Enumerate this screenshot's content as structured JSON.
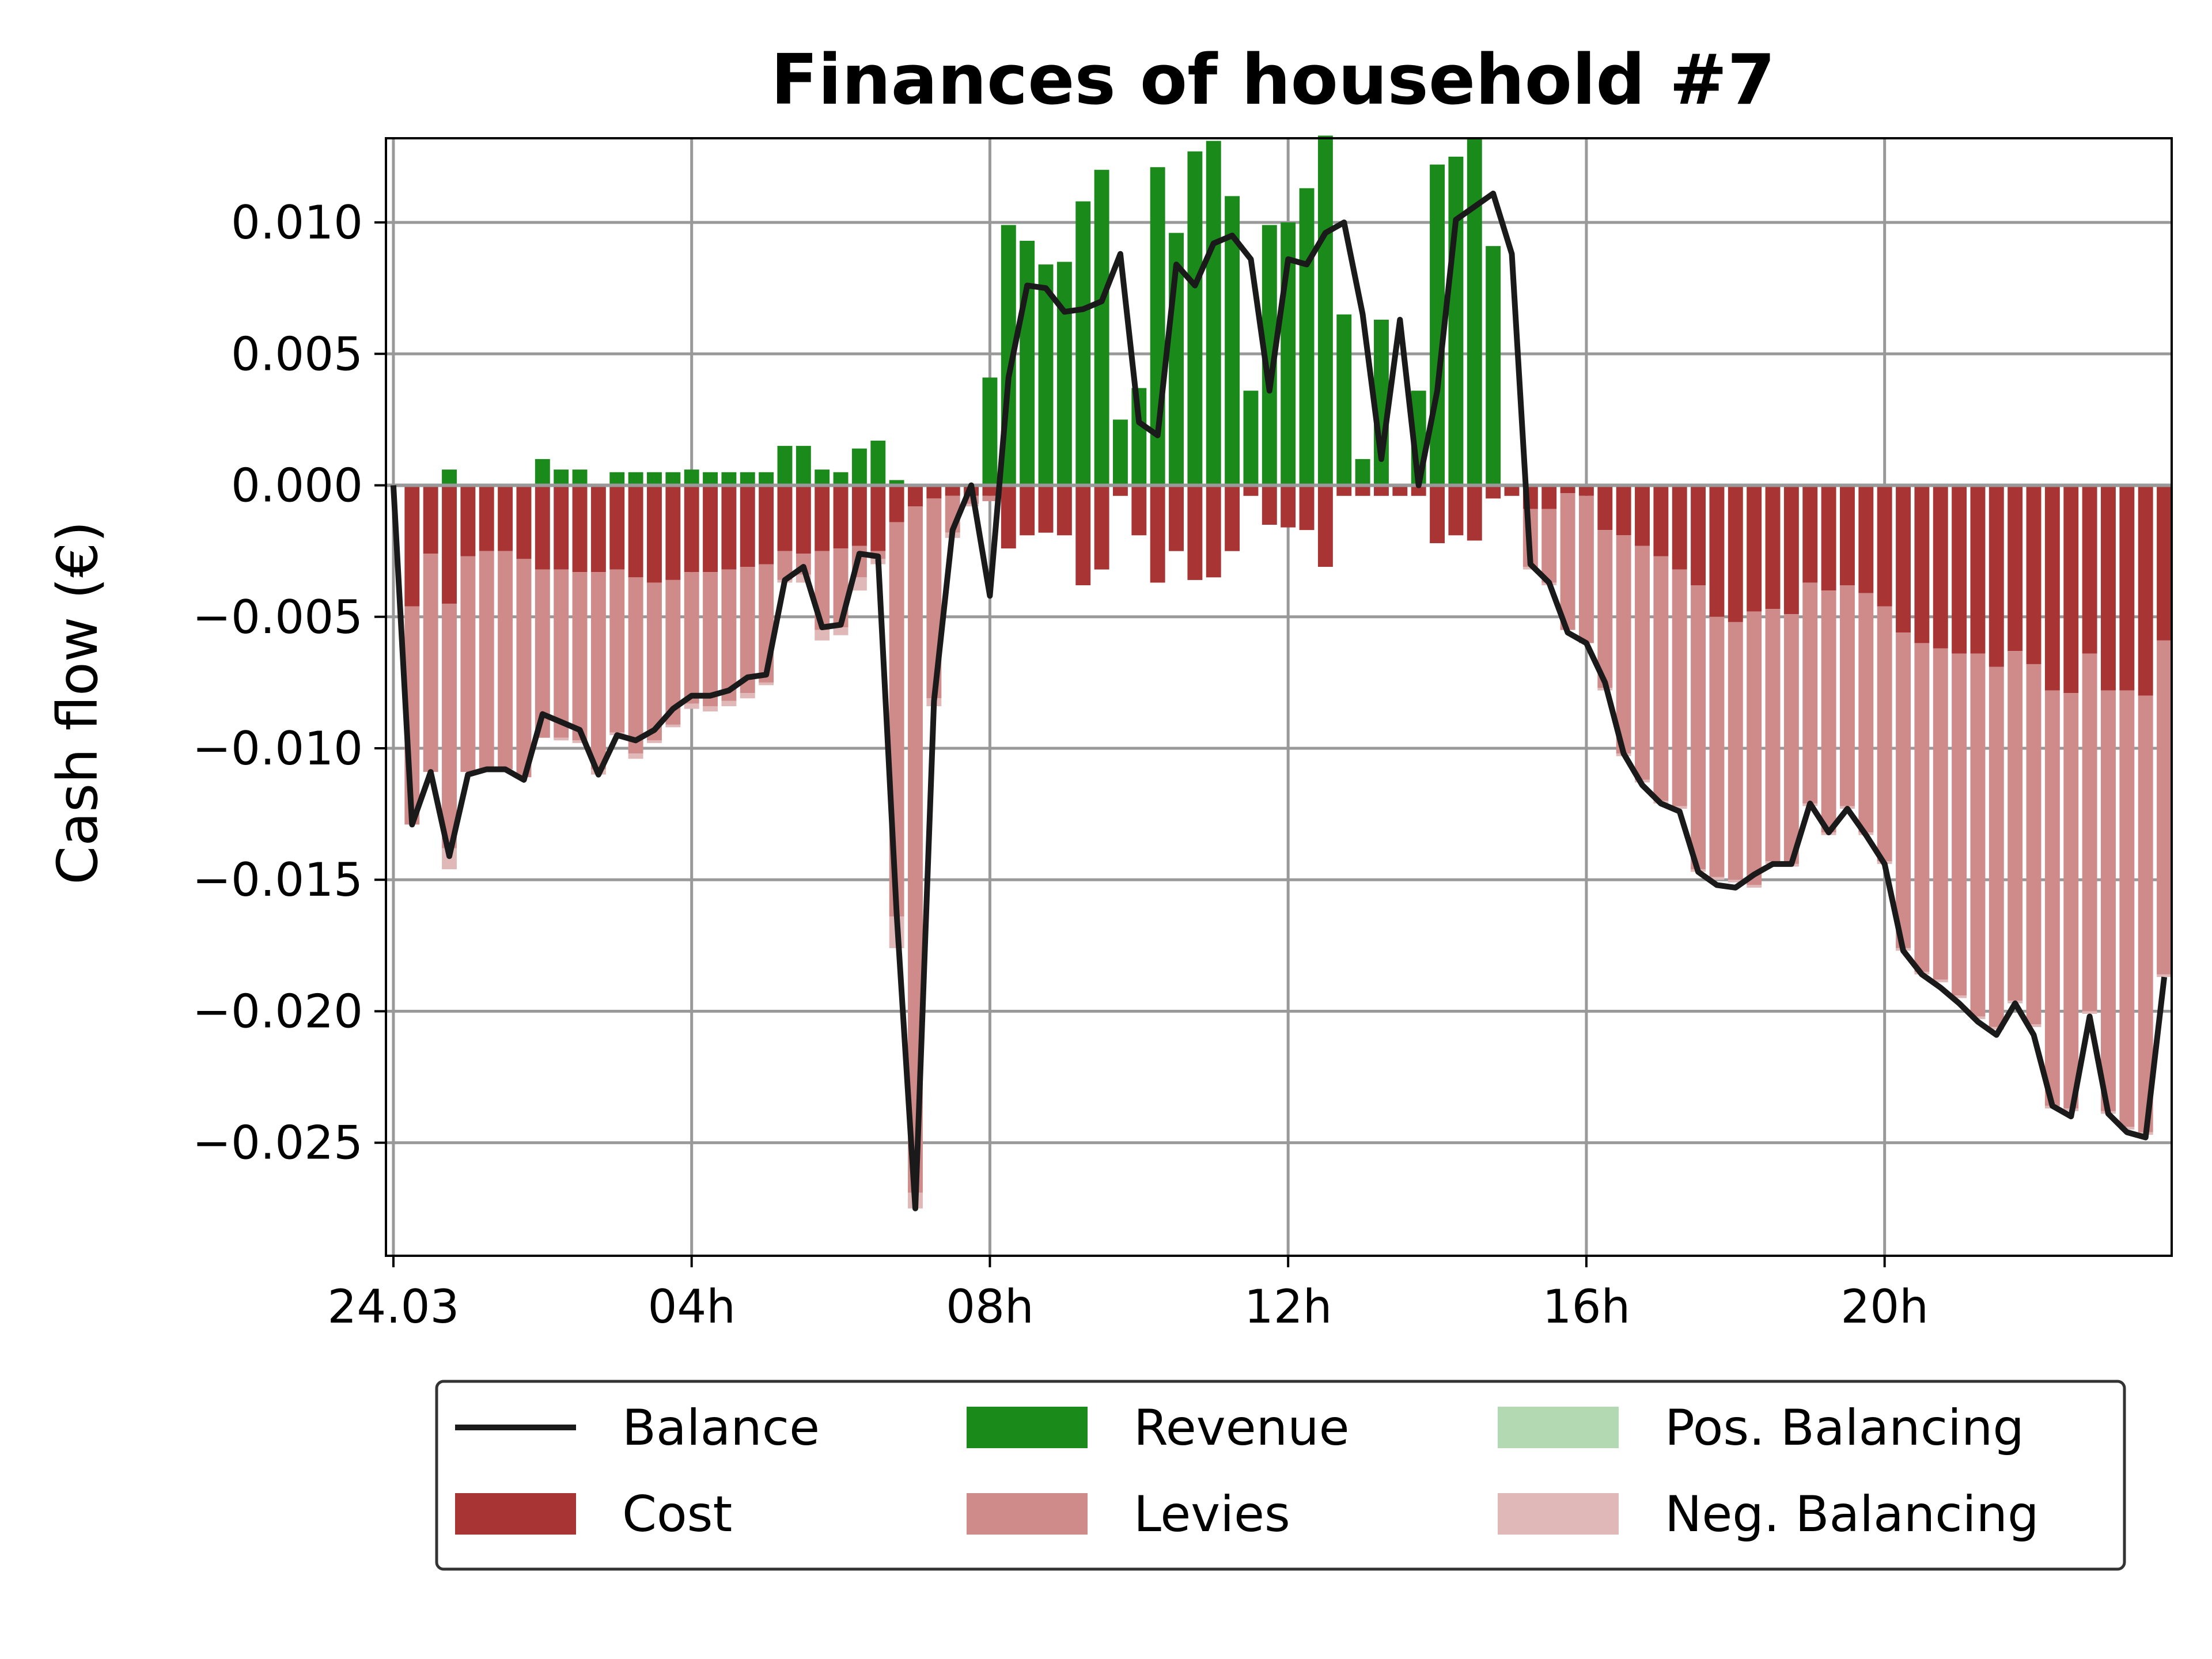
{
  "chart_data": {
    "type": "bar",
    "title": "Finances of household #7",
    "xlabel": "",
    "ylabel": "Cash flow (€)",
    "ylim": [
      -0.0293,
      0.0132
    ],
    "yticks": [
      0.01,
      0.005,
      0.0,
      -0.005,
      -0.01,
      -0.015,
      -0.02,
      -0.025
    ],
    "ytick_labels": [
      "0.010",
      "0.005",
      "0.000",
      "−0.005",
      "−0.010",
      "−0.015",
      "−0.020",
      "−0.025"
    ],
    "x_unit": "hours since 24.03 00:00",
    "xlim": [
      -0.1,
      23.85
    ],
    "xticks": [
      0,
      4,
      8,
      12,
      16,
      20
    ],
    "xtick_labels": [
      "24.03",
      "04h",
      "08h",
      "12h",
      "16h",
      "20h"
    ],
    "bar_width_hours": 0.2,
    "x": [
      0,
      0.25,
      0.5,
      0.75,
      1,
      1.25,
      1.5,
      1.75,
      2,
      2.25,
      2.5,
      2.75,
      3,
      3.25,
      3.5,
      3.75,
      4,
      4.25,
      4.5,
      4.75,
      5,
      5.25,
      5.5,
      5.75,
      6,
      6.25,
      6.5,
      6.75,
      7,
      7.25,
      7.5,
      7.75,
      8,
      8.25,
      8.5,
      8.75,
      9,
      9.25,
      9.5,
      9.75,
      10,
      10.25,
      10.5,
      10.75,
      11,
      11.25,
      11.5,
      11.75,
      12,
      12.25,
      12.5,
      12.75,
      13,
      13.25,
      13.5,
      13.75,
      14,
      14.25,
      14.5,
      14.75,
      15,
      15.25,
      15.5,
      15.75,
      16,
      16.25,
      16.5,
      16.75,
      17,
      17.25,
      17.5,
      17.75,
      18,
      18.25,
      18.5,
      18.75,
      19,
      19.25,
      19.5,
      19.75,
      20,
      20.25,
      20.5,
      20.75,
      21,
      21.25,
      21.5,
      21.75,
      22,
      22.25,
      22.5,
      22.75,
      23,
      23.25,
      23.5,
      23.75
    ],
    "series": [
      {
        "name": "Revenue",
        "color": "#1a8a1a",
        "values": [
          0,
          0,
          0,
          0.0006,
          0,
          0,
          0,
          0,
          0.001,
          0.0006,
          0.0006,
          0,
          0.0005,
          0.0005,
          0.0005,
          0.0005,
          0.0006,
          0.0005,
          0.0005,
          0.0005,
          0.0005,
          0.0015,
          0.0015,
          0.0006,
          0.0005,
          0.0014,
          0.0017,
          0.0002,
          0,
          0,
          0,
          0,
          0.0041,
          0.0099,
          0.0093,
          0.0084,
          0.0085,
          0.0108,
          0.012,
          0.0025,
          0.0037,
          0.0121,
          0.0096,
          0.0127,
          0.0131,
          0.011,
          0.0036,
          0.0099,
          0.01,
          0.0113,
          0.0133,
          0.0065,
          0.001,
          0.0063,
          0,
          0.0036,
          0.0122,
          0.0125,
          0.0132,
          0.0091,
          0,
          0,
          0,
          0,
          0,
          0,
          0,
          0,
          0,
          0,
          0,
          0,
          0,
          0,
          0,
          0,
          0,
          0,
          0,
          0,
          0,
          0,
          0,
          0,
          0,
          0,
          0,
          0,
          0,
          0,
          0,
          0,
          0,
          0,
          0,
          0
        ]
      },
      {
        "name": "Cost",
        "color": "#a83434",
        "values": [
          0,
          -0.0046,
          -0.0026,
          -0.0045,
          -0.0027,
          -0.0025,
          -0.0025,
          -0.0028,
          -0.0032,
          -0.0032,
          -0.0033,
          -0.0033,
          -0.0032,
          -0.0035,
          -0.0037,
          -0.0036,
          -0.0033,
          -0.0033,
          -0.0032,
          -0.0031,
          -0.003,
          -0.0025,
          -0.0026,
          -0.0025,
          -0.0024,
          -0.0023,
          -0.0025,
          -0.0014,
          -0.0008,
          -0.0005,
          -0.0004,
          -0.0004,
          -0.0004,
          -0.0024,
          -0.0019,
          -0.0018,
          -0.0019,
          -0.0038,
          -0.0032,
          -0.0004,
          -0.0019,
          -0.0037,
          -0.0025,
          -0.0036,
          -0.0035,
          -0.0025,
          -0.0004,
          -0.0015,
          -0.0016,
          -0.0017,
          -0.0031,
          -0.0004,
          -0.0004,
          -0.0004,
          -0.0004,
          -0.0004,
          -0.0022,
          -0.0019,
          -0.0021,
          -0.0005,
          -0.0004,
          -0.0009,
          -0.0009,
          -0.0003,
          -0.0004,
          -0.0017,
          -0.0019,
          -0.0023,
          -0.0027,
          -0.0032,
          -0.0038,
          -0.005,
          -0.0052,
          -0.0048,
          -0.0047,
          -0.0049,
          -0.0037,
          -0.004,
          -0.0038,
          -0.0041,
          -0.0046,
          -0.0056,
          -0.006,
          -0.0062,
          -0.0064,
          -0.0064,
          -0.0069,
          -0.0063,
          -0.0068,
          -0.0078,
          -0.0079,
          -0.0064,
          -0.0078,
          -0.0078,
          -0.008,
          -0.0059
        ]
      },
      {
        "name": "Levies",
        "color": "#cf8a8a",
        "values": [
          0,
          -0.0083,
          -0.0083,
          -0.0093,
          -0.0082,
          -0.0083,
          -0.0083,
          -0.0083,
          -0.0064,
          -0.0064,
          -0.0064,
          -0.0075,
          -0.0062,
          -0.0067,
          -0.006,
          -0.0055,
          -0.005,
          -0.0051,
          -0.005,
          -0.0048,
          -0.0045,
          -0.0011,
          -0.0008,
          -0.003,
          -0.003,
          -0.0012,
          -0.0003,
          -0.015,
          -0.0261,
          -0.0076,
          -0.0014,
          -0.0003,
          -0.0002,
          0,
          0,
          0,
          0,
          0,
          0,
          0,
          0,
          0,
          0,
          0,
          0,
          0,
          0,
          0,
          0,
          0,
          0,
          0,
          0,
          0,
          0,
          0,
          0,
          0,
          0,
          0,
          0,
          -0.0022,
          -0.0028,
          -0.0052,
          -0.0056,
          -0.006,
          -0.0083,
          -0.0089,
          -0.0093,
          -0.009,
          -0.0108,
          -0.0099,
          -0.0098,
          -0.0104,
          -0.0096,
          -0.0095,
          -0.0084,
          -0.0092,
          -0.0084,
          -0.0091,
          -0.0097,
          -0.012,
          -0.0125,
          -0.0126,
          -0.013,
          -0.0138,
          -0.0137,
          -0.0133,
          -0.0137,
          -0.0158,
          -0.0158,
          -0.0136,
          -0.016,
          -0.0166,
          -0.0166,
          -0.0127
        ]
      },
      {
        "name": "Pos. Balancing",
        "color": "#b3d9b3",
        "values": [
          0,
          0,
          0,
          0,
          0,
          0,
          0,
          0,
          0,
          0,
          0,
          0,
          0,
          0,
          0,
          0,
          0,
          0,
          0,
          0,
          0,
          0,
          0,
          0,
          0,
          0,
          0,
          0,
          0,
          0,
          0,
          0,
          0,
          0,
          0,
          0,
          0,
          0,
          0,
          0,
          0,
          0,
          0,
          0,
          0,
          0,
          0,
          0,
          0,
          0,
          0,
          0,
          0,
          0,
          0,
          0,
          0,
          0,
          0,
          0,
          0,
          0,
          0,
          0,
          0,
          0,
          0,
          0,
          0,
          0,
          0,
          0,
          0,
          0,
          0,
          0,
          0,
          0,
          0,
          0,
          0,
          0,
          0,
          0,
          0,
          0,
          0,
          0,
          0,
          0,
          0,
          0,
          0,
          0,
          0,
          0
        ]
      },
      {
        "name": "Neg. Balancing",
        "color": "#e0b8b8",
        "values": [
          0,
          0,
          0,
          -0.0008,
          0,
          0,
          0,
          0,
          0,
          -0.0001,
          -0.0001,
          -0.0002,
          -0.0001,
          -0.0002,
          -0.0001,
          -0.0001,
          -0.0002,
          -0.0002,
          -0.0002,
          -0.0002,
          -0.0001,
          -0.0001,
          -0.0003,
          -0.0004,
          -0.0003,
          -0.0005,
          -0.0002,
          -0.0012,
          -0.0006,
          -0.0003,
          -0.0002,
          -0.0001,
          0,
          0,
          0,
          0,
          0,
          0,
          0,
          0,
          0,
          0,
          0,
          0,
          0,
          0,
          0,
          0,
          0,
          0,
          0,
          0,
          0,
          0,
          0,
          0,
          0,
          0,
          0,
          0,
          0,
          -0.0001,
          -0.0001,
          0,
          0,
          -0.0001,
          -0.0001,
          -0.0001,
          -0.0001,
          -0.0001,
          -0.0001,
          -0.0001,
          -0.0001,
          -0.0001,
          -0.0001,
          -0.0001,
          -0.0001,
          -0.0001,
          -0.0001,
          -0.0001,
          -0.0001,
          -0.0001,
          -0.0001,
          -0.0001,
          -0.0001,
          -0.0001,
          -0.0001,
          -0.0001,
          -0.0001,
          -0.0001,
          -0.0001,
          -0.0001,
          -0.0001,
          -0.0001,
          -0.0001,
          -0.0001
        ]
      }
    ],
    "line": {
      "name": "Balance",
      "color": "#1a1a1a",
      "x": [
        0,
        0.25,
        0.5,
        0.75,
        1,
        1.25,
        1.5,
        1.75,
        2,
        2.25,
        2.5,
        2.75,
        3,
        3.25,
        3.5,
        3.75,
        4,
        4.25,
        4.5,
        4.75,
        5,
        5.25,
        5.5,
        5.75,
        6,
        6.25,
        6.5,
        6.75,
        7,
        7.25,
        7.5,
        7.75,
        8,
        8.25,
        8.5,
        8.75,
        9,
        9.25,
        9.5,
        9.75,
        10,
        10.25,
        10.5,
        10.75,
        11,
        11.25,
        11.5,
        11.75,
        12,
        12.25,
        12.5,
        12.75,
        13,
        13.25,
        13.5,
        13.75,
        14,
        14.25,
        14.5,
        14.75,
        15,
        15.25,
        15.5,
        15.75,
        16,
        16.25,
        16.5,
        16.75,
        17,
        17.25,
        17.5,
        17.75,
        18,
        18.25,
        18.5,
        18.75,
        19,
        19.25,
        19.5,
        19.75,
        20,
        20.25,
        20.5,
        20.75,
        21,
        21.25,
        21.5,
        21.75,
        22,
        22.25,
        22.5,
        22.75,
        23,
        23.25,
        23.5,
        23.75
      ],
      "values": [
        0,
        -0.0129,
        -0.0109,
        -0.0141,
        -0.011,
        -0.0108,
        -0.0108,
        -0.0112,
        -0.0087,
        -0.009,
        -0.0093,
        -0.011,
        -0.0095,
        -0.0097,
        -0.0093,
        -0.0085,
        -0.008,
        -0.008,
        -0.0078,
        -0.0073,
        -0.0072,
        -0.0036,
        -0.0031,
        -0.0054,
        -0.0053,
        -0.0026,
        -0.0027,
        -0.0163,
        -0.0275,
        -0.0082,
        -0.0017,
        0,
        -0.0042,
        0.0041,
        0.0076,
        0.0075,
        0.0066,
        0.0067,
        0.007,
        0.0088,
        0.0024,
        0.0019,
        0.0084,
        0.0076,
        0.0092,
        0.0095,
        0.0086,
        0.0036,
        0.0086,
        0.0084,
        0.0096,
        0.01,
        0.0065,
        0.001,
        0.0063,
        0,
        0.0036,
        0.0101,
        0.0106,
        0.0111,
        0.0088,
        -0.003,
        -0.0037,
        -0.0056,
        -0.006,
        -0.0075,
        -0.0102,
        -0.0114,
        -0.0121,
        -0.0124,
        -0.0147,
        -0.0152,
        -0.0153,
        -0.0148,
        -0.0144,
        -0.0144,
        -0.0121,
        -0.0132,
        -0.0123,
        -0.0133,
        -0.0144,
        -0.0177,
        -0.0186,
        -0.0191,
        -0.0197,
        -0.0204,
        -0.0209,
        -0.0197,
        -0.0209,
        -0.0236,
        -0.024,
        -0.0202,
        -0.0239,
        -0.0246,
        -0.0248,
        -0.0187
      ]
    },
    "legend": {
      "placement": "bottom",
      "entries": [
        {
          "label": "Balance",
          "kind": "line",
          "color": "#1a1a1a"
        },
        {
          "label": "Cost",
          "kind": "patch",
          "color": "#a83434"
        },
        {
          "label": "Revenue",
          "kind": "patch",
          "color": "#1a8a1a"
        },
        {
          "label": "Levies",
          "kind": "patch",
          "color": "#cf8a8a"
        },
        {
          "label": "Pos. Balancing",
          "kind": "patch",
          "color": "#b3d9b3"
        },
        {
          "label": "Neg. Balancing",
          "kind": "patch",
          "color": "#e0b8b8"
        }
      ]
    },
    "grid": true
  }
}
